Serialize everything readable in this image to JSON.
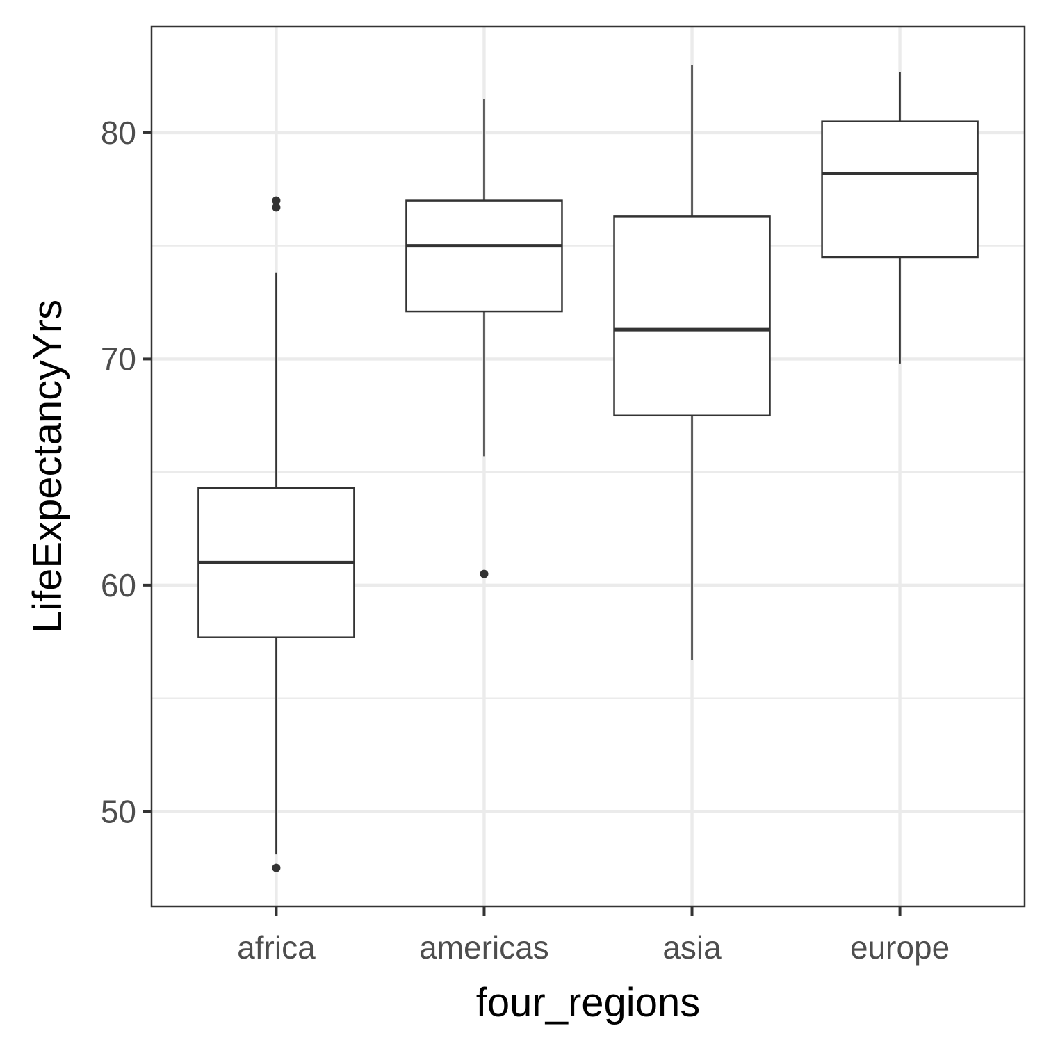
{
  "chart_data": {
    "type": "box",
    "xlabel": "four_regions",
    "ylabel": "LifeExpectancyYrs",
    "ylim": [
      45.8,
      84.7
    ],
    "yticks": [
      50,
      60,
      70,
      80
    ],
    "grid": true,
    "categories": [
      "africa",
      "americas",
      "asia",
      "europe"
    ],
    "boxes": [
      {
        "category": "africa",
        "whisker_low": 48.1,
        "q1": 57.7,
        "median": 61.0,
        "q3": 64.3,
        "whisker_high": 73.8,
        "outliers": [
          47.5,
          76.7,
          77.0
        ]
      },
      {
        "category": "americas",
        "whisker_low": 65.7,
        "q1": 72.1,
        "median": 75.0,
        "q3": 77.0,
        "whisker_high": 81.5,
        "outliers": [
          60.5
        ]
      },
      {
        "category": "asia",
        "whisker_low": 56.7,
        "q1": 67.5,
        "median": 71.3,
        "q3": 76.3,
        "whisker_high": 83.0,
        "outliers": []
      },
      {
        "category": "europe",
        "whisker_low": 69.8,
        "q1": 74.5,
        "median": 78.2,
        "q3": 80.5,
        "whisker_high": 82.7,
        "outliers": []
      }
    ],
    "colors": {
      "panel_border": "#333333",
      "grid": "#ebebeb",
      "box_line": "#333333",
      "box_fill": "#ffffff"
    }
  }
}
